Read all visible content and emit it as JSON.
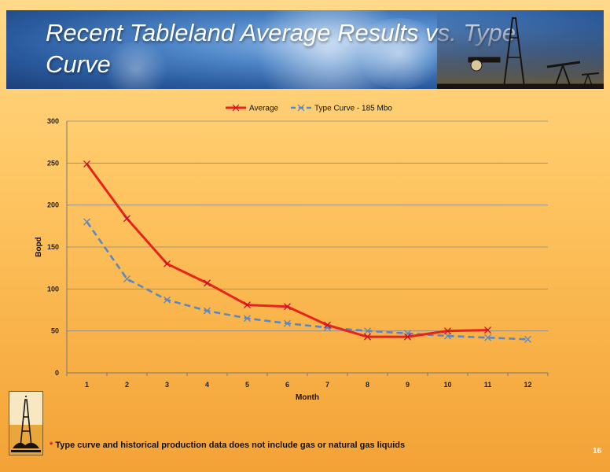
{
  "slide": {
    "title": "Recent Tableland Average Results vs. Type Curve",
    "footnote_star": "*",
    "footnote": "Type curve and historical production data does not include gas or natural gas liquids",
    "page_number": "16"
  },
  "chart_data": {
    "type": "line",
    "title": "",
    "xlabel": "Month",
    "ylabel": "Bopd",
    "categories": [
      "1",
      "2",
      "3",
      "4",
      "5",
      "6",
      "7",
      "8",
      "9",
      "10",
      "11",
      "12"
    ],
    "ylim": [
      0,
      300
    ],
    "yticks": [
      "0",
      "50",
      "100",
      "150",
      "200",
      "250",
      "300"
    ],
    "grid": true,
    "legend": "top-center",
    "series": [
      {
        "name": "Average",
        "color": "#e8231b",
        "dashed": false,
        "values": [
          249,
          184,
          130,
          107,
          81,
          79,
          57,
          43,
          43,
          50,
          51,
          null
        ]
      },
      {
        "name": "Type Curve - 185 Mbo",
        "color": "#5b87c2",
        "dashed": true,
        "values": [
          180,
          112,
          87,
          74,
          65,
          59,
          54,
          50,
          47,
          44,
          42,
          40
        ]
      }
    ]
  }
}
